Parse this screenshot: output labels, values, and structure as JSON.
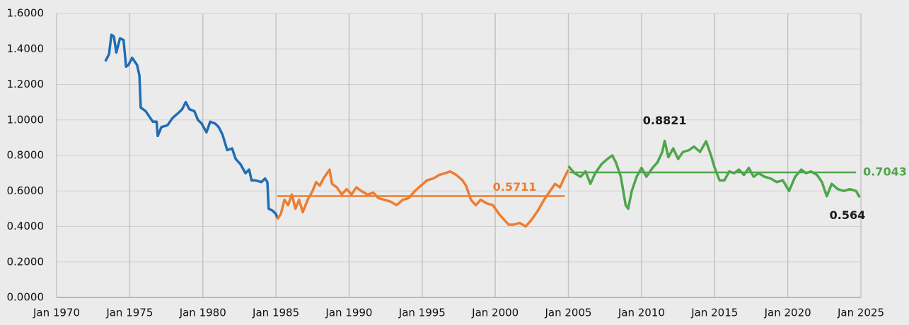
{
  "chart_data": {
    "type": "line",
    "xlim": [
      "1970-01",
      "2025-01"
    ],
    "ylim": [
      0,
      1.6
    ],
    "xticks": [
      {
        "value": "1970-01",
        "label": "Jan 1970"
      },
      {
        "value": "1975-01",
        "label": "Jan 1975"
      },
      {
        "value": "1980-01",
        "label": "Jan 1980"
      },
      {
        "value": "1985-01",
        "label": "Jan 1985"
      },
      {
        "value": "1990-01",
        "label": "Jan 1990"
      },
      {
        "value": "1995-01",
        "label": "Jan 1995"
      },
      {
        "value": "2000-01",
        "label": "Jan 2000"
      },
      {
        "value": "2005-01",
        "label": "Jan 2005"
      },
      {
        "value": "2010-01",
        "label": "Jan 2010"
      },
      {
        "value": "2015-01",
        "label": "Jan 2015"
      },
      {
        "value": "2020-01",
        "label": "Jan 2020"
      },
      {
        "value": "2025-01",
        "label": "Jan 2025"
      }
    ],
    "yticks": [
      {
        "value": 0,
        "label": "0.0000"
      },
      {
        "value": 0.2,
        "label": "0.2000"
      },
      {
        "value": 0.4,
        "label": "0.4000"
      },
      {
        "value": 0.6,
        "label": "0.6000"
      },
      {
        "value": 0.8,
        "label": "0.8000"
      },
      {
        "value": 1,
        "label": "1.0000"
      },
      {
        "value": 1.2,
        "label": "1.2000"
      },
      {
        "value": 1.4,
        "label": "1.4000"
      },
      {
        "value": 1.6,
        "label": "1.6000"
      }
    ],
    "grid": true,
    "series": [
      {
        "color": "#1f6db5",
        "x": [
          "1973-05",
          "1973-08",
          "1973-10",
          "1973-12",
          "1974-02",
          "1974-05",
          "1974-08",
          "1974-10",
          "1974-12",
          "1975-03",
          "1975-07",
          "1975-09",
          "1975-10",
          "1976-02",
          "1976-05",
          "1976-08",
          "1976-11",
          "1976-12",
          "1977-03",
          "1977-08",
          "1977-12",
          "1978-05",
          "1978-08",
          "1978-11",
          "1979-02",
          "1979-06",
          "1979-09",
          "1979-12",
          "1980-04",
          "1980-07",
          "1980-11",
          "1981-02",
          "1981-05",
          "1981-09",
          "1982-01",
          "1982-04",
          "1982-08",
          "1982-12",
          "1983-03",
          "1983-05",
          "1983-08",
          "1984-01",
          "1984-04",
          "1984-06",
          "1984-07",
          "1984-10",
          "1985-01",
          "1985-02"
        ],
        "values": [
          1.33,
          1.37,
          1.48,
          1.47,
          1.38,
          1.46,
          1.45,
          1.3,
          1.31,
          1.35,
          1.31,
          1.25,
          1.07,
          1.05,
          1.02,
          0.99,
          0.99,
          0.91,
          0.96,
          0.97,
          1.01,
          1.04,
          1.06,
          1.1,
          1.06,
          1.05,
          1.0,
          0.98,
          0.93,
          0.99,
          0.98,
          0.96,
          0.92,
          0.83,
          0.84,
          0.78,
          0.75,
          0.7,
          0.72,
          0.66,
          0.66,
          0.65,
          0.67,
          0.65,
          0.5,
          0.49,
          0.47,
          0.45
        ]
      },
      {
        "color": "#ed7d31",
        "x": [
          "1985-02",
          "1985-05",
          "1985-08",
          "1985-11",
          "1986-02",
          "1986-05",
          "1986-08",
          "1986-11",
          "1987-03",
          "1987-07",
          "1987-10",
          "1988-01",
          "1988-04",
          "1988-07",
          "1988-09",
          "1988-11",
          "1989-03",
          "1989-07",
          "1989-11",
          "1990-03",
          "1990-07",
          "1990-11",
          "1991-04",
          "1991-09",
          "1992-01",
          "1992-06",
          "1992-11",
          "1993-04",
          "1993-09",
          "1994-02",
          "1994-07",
          "1994-12",
          "1995-05",
          "1995-10",
          "1996-03",
          "1996-08",
          "1996-12",
          "1997-05",
          "1997-10",
          "1998-01",
          "1998-05",
          "1998-09",
          "1999-01",
          "1999-06",
          "1999-11",
          "2000-04",
          "2000-08",
          "2000-12",
          "2001-04",
          "2001-09",
          "2002-02",
          "2002-07",
          "2002-12",
          "2003-05",
          "2003-10",
          "2004-02",
          "2004-06",
          "2004-10",
          "2005-01"
        ],
        "values": [
          0.44,
          0.47,
          0.55,
          0.52,
          0.58,
          0.5,
          0.55,
          0.48,
          0.55,
          0.6,
          0.65,
          0.63,
          0.67,
          0.7,
          0.72,
          0.64,
          0.62,
          0.58,
          0.61,
          0.58,
          0.62,
          0.6,
          0.58,
          0.59,
          0.56,
          0.55,
          0.54,
          0.52,
          0.55,
          0.56,
          0.6,
          0.63,
          0.66,
          0.67,
          0.69,
          0.7,
          0.71,
          0.69,
          0.66,
          0.63,
          0.55,
          0.52,
          0.55,
          0.53,
          0.52,
          0.47,
          0.44,
          0.41,
          0.41,
          0.42,
          0.4,
          0.44,
          0.49,
          0.55,
          0.6,
          0.64,
          0.62,
          0.68,
          0.72
        ]
      },
      {
        "color": "#4ea64a",
        "x": [
          "2005-01",
          "2005-06",
          "2005-11",
          "2006-03",
          "2006-07",
          "2006-11",
          "2007-04",
          "2007-09",
          "2008-01",
          "2008-04",
          "2008-08",
          "2008-12",
          "2009-02",
          "2009-05",
          "2009-09",
          "2010-01",
          "2010-05",
          "2010-10",
          "2011-02",
          "2011-06",
          "2011-08",
          "2011-11",
          "2012-03",
          "2012-07",
          "2012-11",
          "2013-04",
          "2013-08",
          "2014-01",
          "2014-06",
          "2014-10",
          "2015-01",
          "2015-05",
          "2015-09",
          "2016-01",
          "2016-05",
          "2016-09",
          "2017-01",
          "2017-05",
          "2017-09",
          "2018-01",
          "2018-06",
          "2018-11",
          "2019-04",
          "2019-09",
          "2020-02",
          "2020-07",
          "2020-12",
          "2021-04",
          "2021-08",
          "2022-01",
          "2022-05",
          "2022-09",
          "2023-01",
          "2023-06",
          "2023-11",
          "2024-04",
          "2024-09",
          "2024-12"
        ],
        "values": [
          0.74,
          0.7,
          0.68,
          0.71,
          0.64,
          0.7,
          0.75,
          0.78,
          0.8,
          0.76,
          0.68,
          0.52,
          0.5,
          0.6,
          0.68,
          0.73,
          0.68,
          0.73,
          0.76,
          0.82,
          0.8821,
          0.79,
          0.84,
          0.78,
          0.82,
          0.83,
          0.85,
          0.82,
          0.88,
          0.8,
          0.73,
          0.66,
          0.66,
          0.71,
          0.7,
          0.72,
          0.69,
          0.73,
          0.68,
          0.7,
          0.68,
          0.67,
          0.65,
          0.66,
          0.6,
          0.68,
          0.72,
          0.7,
          0.71,
          0.69,
          0.65,
          0.57,
          0.64,
          0.61,
          0.6,
          0.61,
          0.6,
          0.564
        ]
      }
    ],
    "reference_lines": [
      {
        "value": 0.5711,
        "x": [
          "1985-02",
          "2004-10"
        ],
        "color": "#ed7d31"
      },
      {
        "value": 0.7043,
        "x": [
          "2005-02",
          "2024-09"
        ],
        "color": "#4ea64a"
      }
    ],
    "annotations": [
      {
        "x": "2011-08",
        "value": 0.8821,
        "color": "#1a1a1a"
      },
      {
        "x": "2024-12",
        "value": 0.564,
        "color": "#1a1a1a"
      }
    ]
  }
}
